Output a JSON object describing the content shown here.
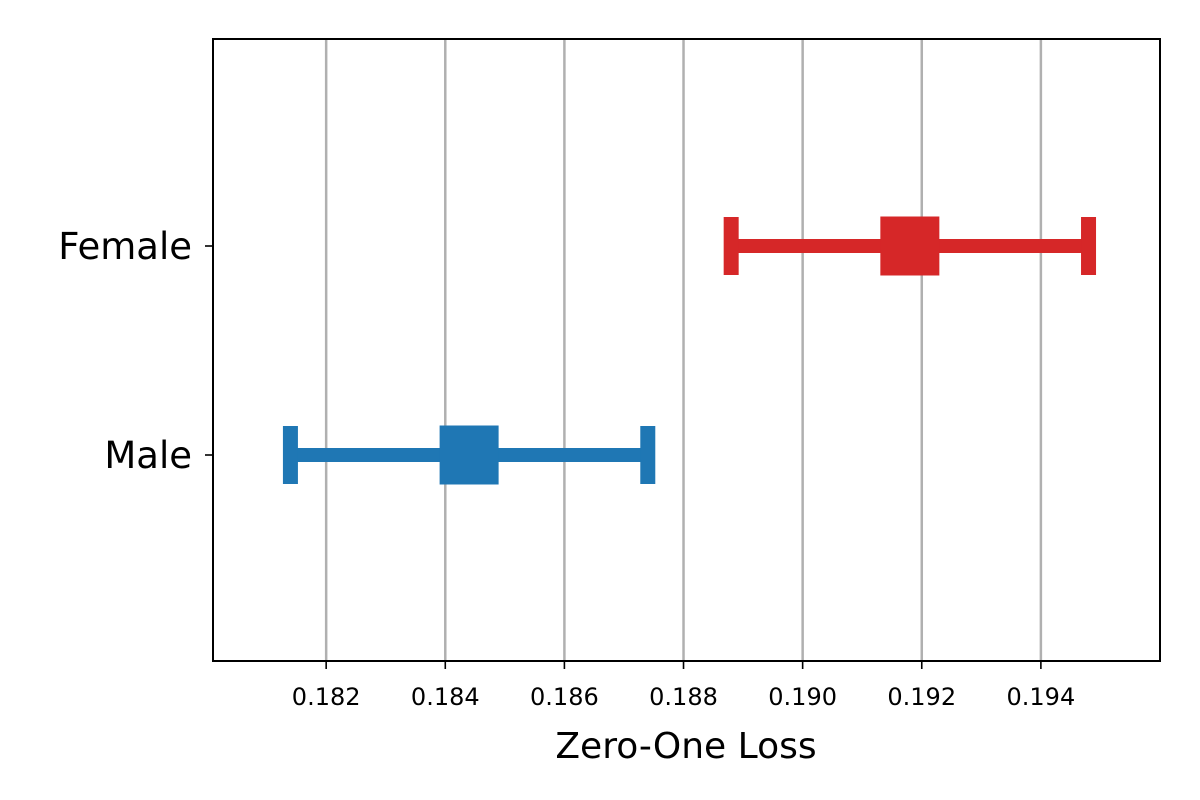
{
  "chart_data": {
    "type": "errorbar",
    "title": "",
    "xlabel": "Zero-One Loss",
    "ylabel": "",
    "xlim": [
      0.1801,
      0.196
    ],
    "grid": "vertical",
    "x_ticks": [
      0.182,
      0.184,
      0.186,
      0.188,
      0.19,
      0.192,
      0.194
    ],
    "x_tick_labels": [
      "0.182",
      "0.184",
      "0.186",
      "0.188",
      "0.190",
      "0.192",
      "0.194"
    ],
    "categories": [
      "Female",
      "Male"
    ],
    "points": [
      {
        "category": "Female",
        "value": 0.1918,
        "lower": 0.1888,
        "upper": 0.1948,
        "color": "#d62728"
      },
      {
        "category": "Male",
        "value": 0.1844,
        "lower": 0.1814,
        "upper": 0.1874,
        "color": "#1f77b4"
      }
    ]
  }
}
